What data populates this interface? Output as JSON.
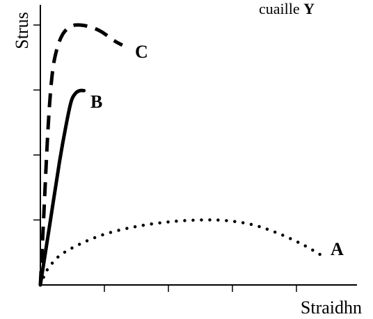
{
  "chart_data": {
    "type": "line",
    "title": "",
    "xlabel": "Straidhn",
    "ylabel": "Strus",
    "xlim": [
      0,
      5
    ],
    "ylim": [
      0,
      4
    ],
    "x_ticks": [
      1,
      2,
      3,
      4
    ],
    "y_ticks": [
      1,
      2,
      3,
      4
    ],
    "grid": false,
    "legend": "none",
    "annotations": [
      {
        "text": "cuaille ",
        "bold": "Y"
      }
    ],
    "series": [
      {
        "name": "A",
        "style": "dotted",
        "color": "#000000",
        "x": [
          0.0,
          0.05,
          0.12,
          0.3,
          0.6,
          1.0,
          1.5,
          2.0,
          2.5,
          2.9,
          3.3,
          3.7,
          4.1,
          4.4
        ],
        "y": [
          0.0,
          0.12,
          0.25,
          0.45,
          0.62,
          0.78,
          0.9,
          0.97,
          1.0,
          0.99,
          0.93,
          0.8,
          0.62,
          0.45
        ]
      },
      {
        "name": "B",
        "style": "solid",
        "color": "#000000",
        "x": [
          0.0,
          0.15,
          0.3,
          0.4,
          0.48,
          0.55,
          0.62,
          0.68
        ],
        "y": [
          0.0,
          0.95,
          1.9,
          2.45,
          2.82,
          2.95,
          2.99,
          2.99
        ]
      },
      {
        "name": "C",
        "style": "dashed",
        "color": "#000000",
        "x": [
          0.0,
          0.05,
          0.12,
          0.18,
          0.25,
          0.35,
          0.48,
          0.62,
          0.78,
          0.95,
          1.15,
          1.28
        ],
        "y": [
          0.0,
          1.0,
          2.4,
          3.2,
          3.6,
          3.86,
          3.98,
          4.0,
          3.97,
          3.9,
          3.76,
          3.69
        ]
      }
    ]
  }
}
